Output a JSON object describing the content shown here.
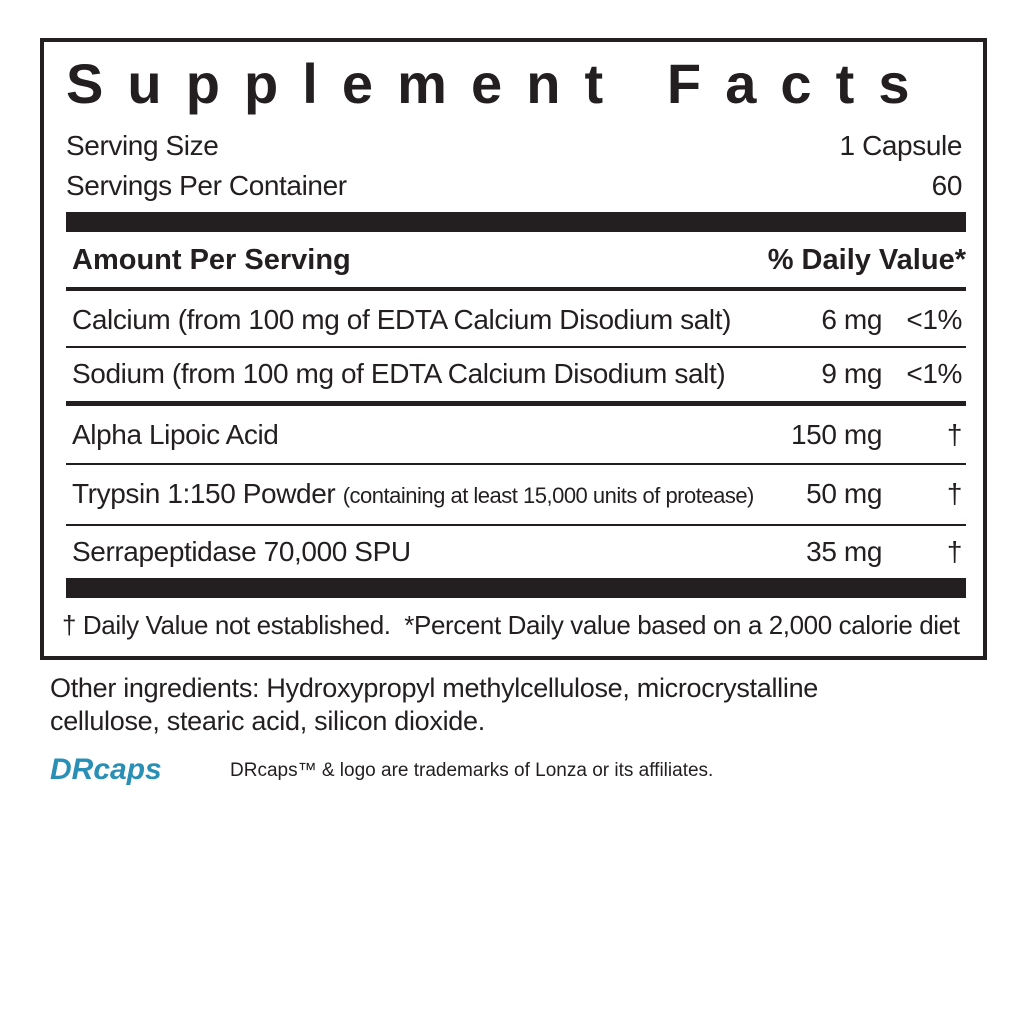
{
  "title": "Supplement Facts",
  "serving": [
    {
      "label": "Serving Size",
      "value": "1 Capsule"
    },
    {
      "label": "Servings Per Container",
      "value": "60"
    }
  ],
  "header": {
    "amount": "Amount Per Serving",
    "daily_value": "% Daily Value*"
  },
  "rows": [
    {
      "name": "Calcium (from 100 mg of EDTA Calcium Disodium salt)",
      "amount": "6 mg",
      "daily_value": "<1%"
    },
    {
      "name": "Sodium (from 100 mg of EDTA Calcium Disodium salt)",
      "amount": "9 mg",
      "daily_value": "<1%"
    },
    {
      "name": "Alpha Lipoic Acid",
      "amount": "150 mg",
      "daily_value": "†"
    },
    {
      "name": "Trypsin 1:150 Powder",
      "note": "(containing at least 15,000 units of protease)",
      "amount": "50 mg",
      "daily_value": "†"
    },
    {
      "name": "Serrapeptidase 70,000 SPU",
      "amount": "35 mg",
      "daily_value": "†"
    }
  ],
  "footnote": [
    "† Daily Value not established.",
    "*Percent Daily value based on a 2,000 calorie diet"
  ],
  "other_ingredients": "Other ingredients: Hydroxypropyl methylcellulose, microcrystalline cellulose, stearic acid, silicon dioxide.",
  "logo": {
    "text": "DRcaps",
    "trademark": "DRcaps™ & logo are trademarks of Lonza or its affiliates."
  }
}
